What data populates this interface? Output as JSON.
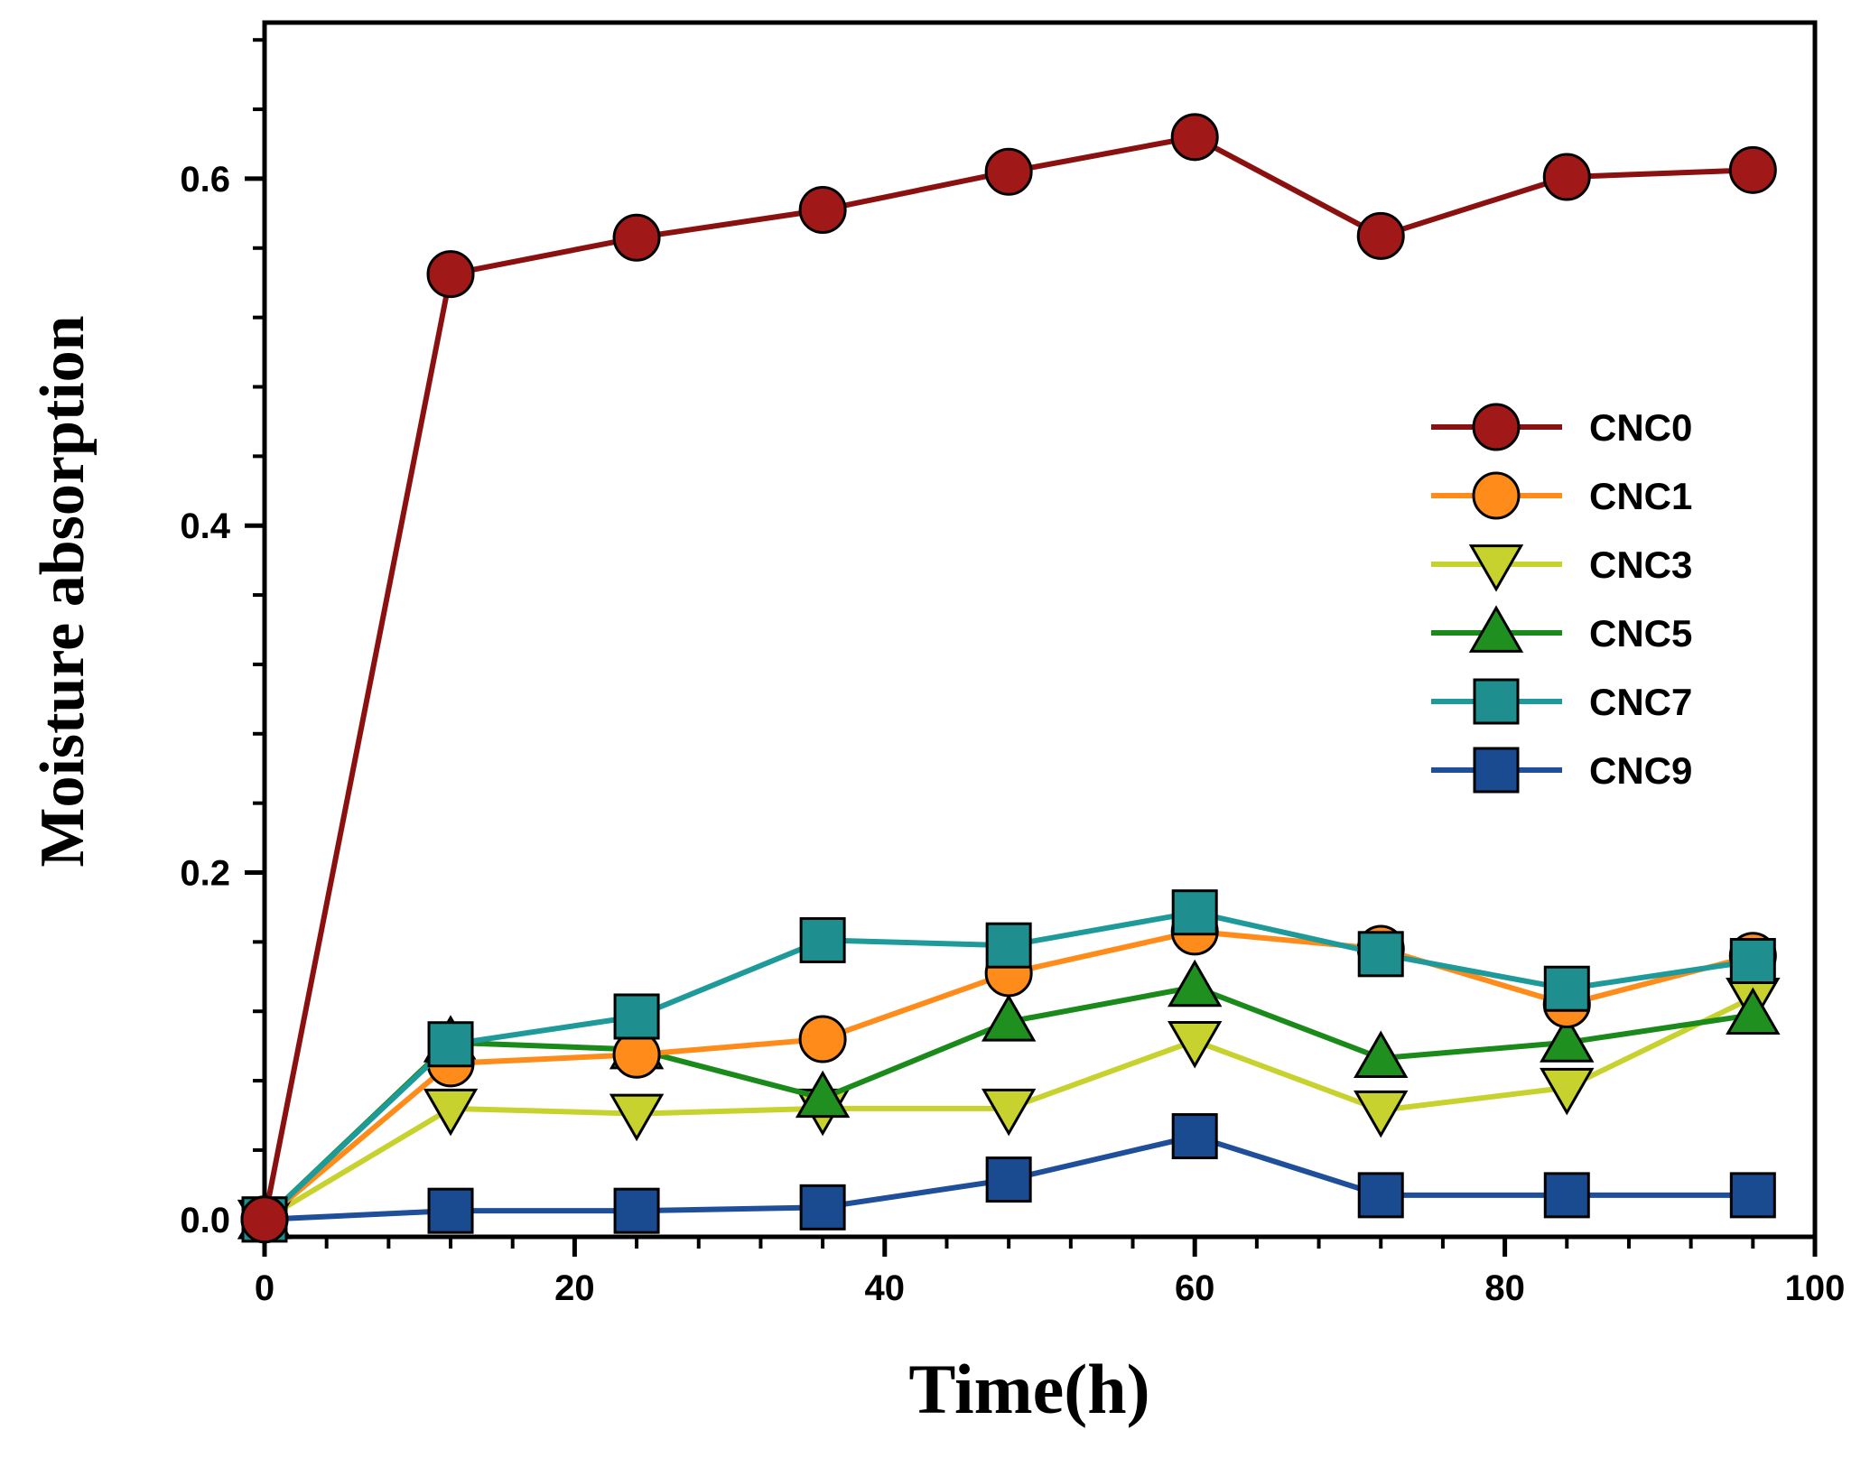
{
  "chart_data": {
    "type": "line",
    "title": "",
    "xlabel": "Time(h)",
    "ylabel": "Moisture absorption",
    "xlim": [
      0,
      100
    ],
    "ylim": [
      -0.01,
      0.69
    ],
    "x_ticks": [
      0,
      20,
      40,
      60,
      80,
      100
    ],
    "y_ticks": [
      0.0,
      0.2,
      0.4,
      0.6
    ],
    "x_tick_labels": [
      "0",
      "20",
      "40",
      "60",
      "80",
      "100"
    ],
    "y_tick_labels": [
      "0.0",
      "0.2",
      "0.4",
      "0.6"
    ],
    "grid": false,
    "legend_position": "center-right",
    "x": [
      0,
      12,
      24,
      36,
      48,
      60,
      72,
      84,
      96
    ],
    "series": [
      {
        "name": "CNC0",
        "marker": "circle",
        "line_color": "#8b1010",
        "fill_color": "#a01818",
        "values": [
          0.0,
          0.545,
          0.566,
          0.582,
          0.604,
          0.624,
          0.567,
          0.601,
          0.605
        ]
      },
      {
        "name": "CNC1",
        "marker": "circle",
        "line_color": "#ff8c1a",
        "fill_color": "#ff8c1a",
        "values": [
          0.0,
          0.09,
          0.095,
          0.104,
          0.142,
          0.166,
          0.156,
          0.124,
          0.152
        ]
      },
      {
        "name": "CNC3",
        "marker": "triangle-down",
        "line_color": "#c8d22e",
        "fill_color": "#c8d22e",
        "values": [
          0.0,
          0.064,
          0.061,
          0.064,
          0.064,
          0.103,
          0.063,
          0.076,
          0.128
        ]
      },
      {
        "name": "CNC5",
        "marker": "triangle-up",
        "line_color": "#1a8a1a",
        "fill_color": "#1f8f1f",
        "values": [
          0.0,
          0.102,
          0.098,
          0.07,
          0.114,
          0.134,
          0.093,
          0.102,
          0.118
        ]
      },
      {
        "name": "CNC7",
        "marker": "square",
        "line_color": "#1f9a9a",
        "fill_color": "#1e8e8e",
        "values": [
          0.0,
          0.101,
          0.117,
          0.161,
          0.158,
          0.177,
          0.153,
          0.133,
          0.149
        ]
      },
      {
        "name": "CNC9",
        "marker": "square",
        "line_color": "#1f4e9a",
        "fill_color": "#1a4a8f",
        "values": [
          0.0,
          0.005,
          0.005,
          0.007,
          0.023,
          0.048,
          0.014,
          0.014,
          0.014
        ]
      }
    ]
  }
}
